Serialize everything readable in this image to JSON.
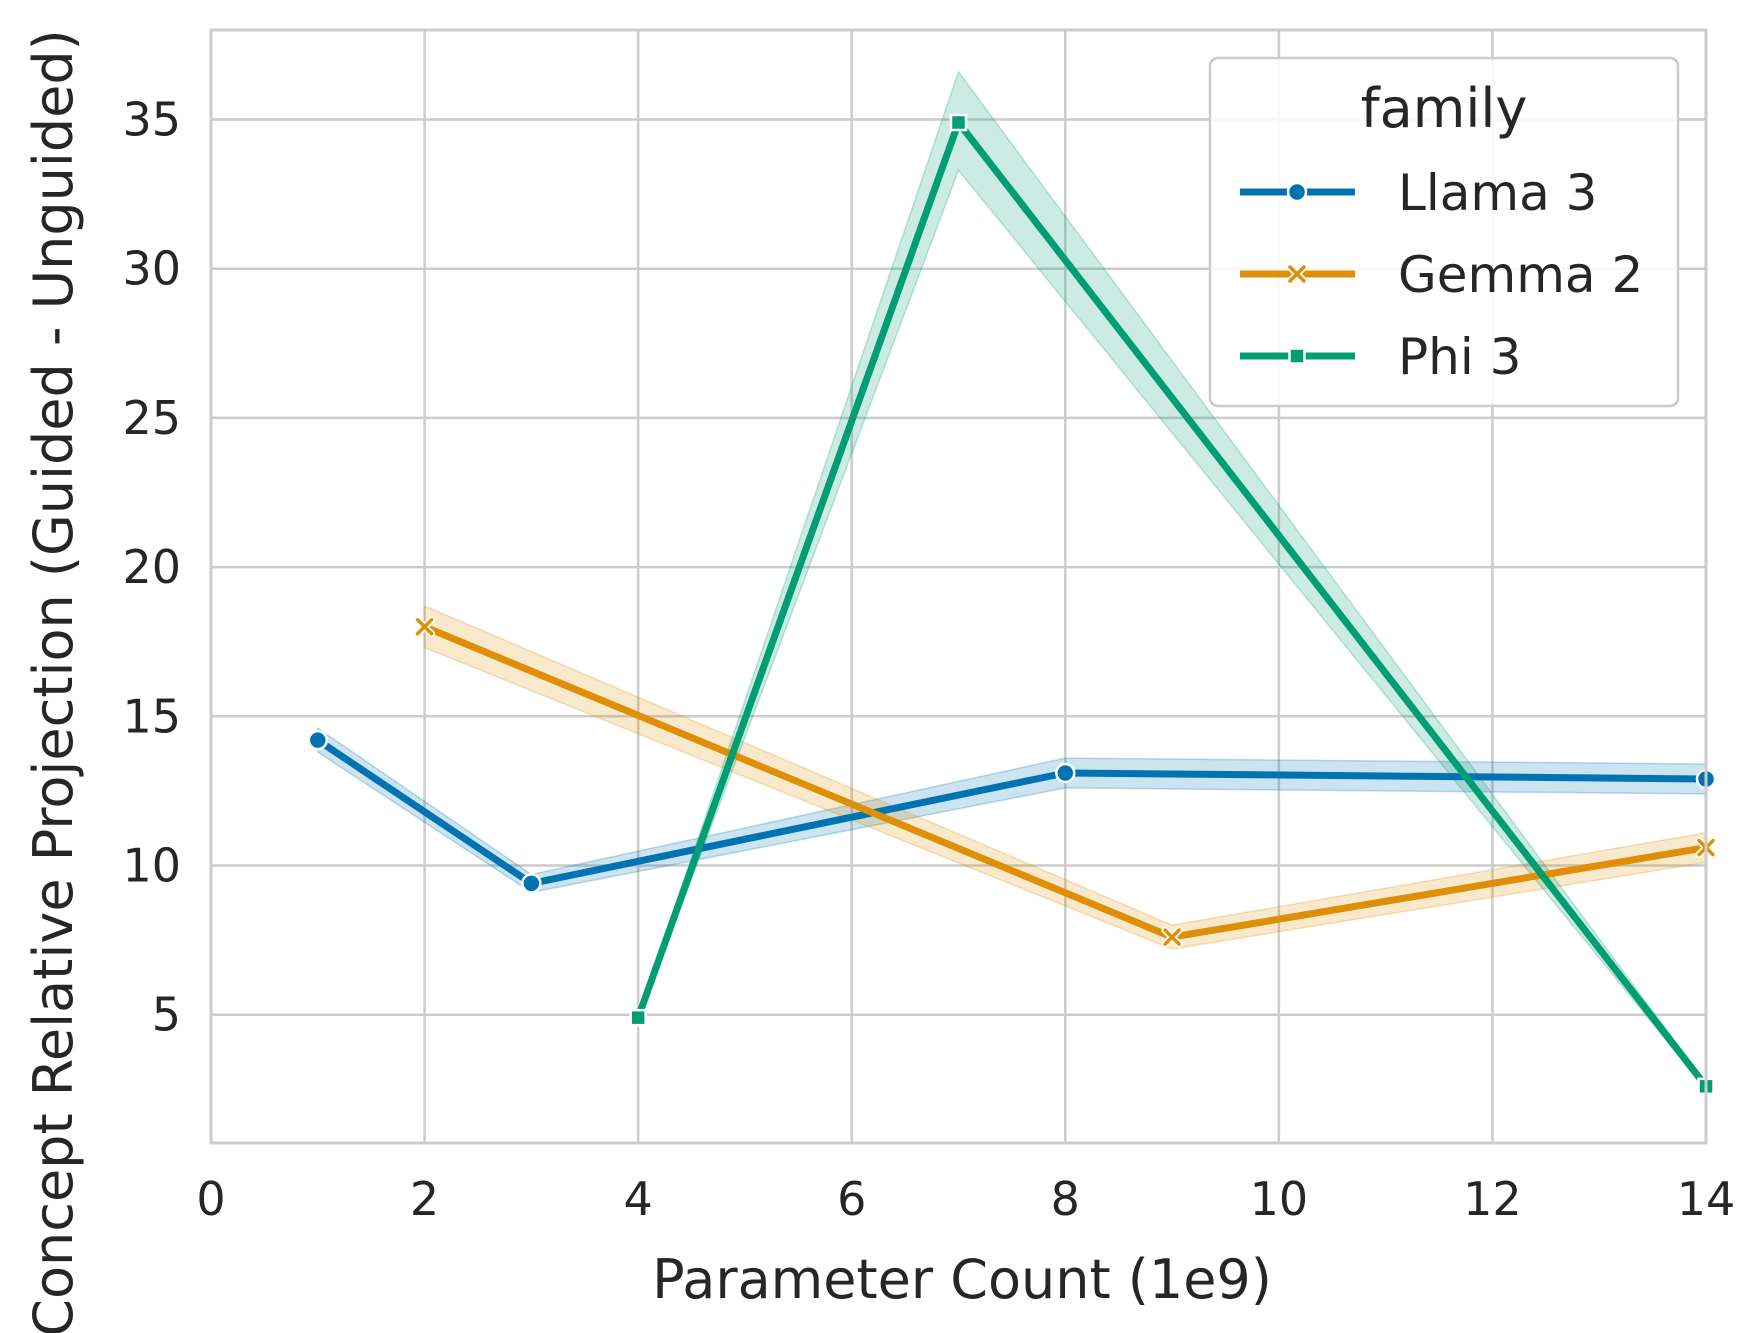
{
  "chart_data": {
    "type": "line",
    "xlabel": "Parameter Count (1e9)",
    "ylabel": "Concept Relative Projection (Guided - Unguided)",
    "xlim": [
      0,
      14
    ],
    "ylim": [
      0.7,
      38.0
    ],
    "xticks": [
      0,
      2,
      4,
      6,
      8,
      10,
      12,
      14
    ],
    "yticks": [
      5,
      10,
      15,
      20,
      25,
      30,
      35
    ],
    "grid": true,
    "legend": {
      "title": "family",
      "placement": "top-right"
    },
    "series": [
      {
        "name": "Llama 3",
        "color": "#0173b2",
        "marker": "circle",
        "x": [
          1,
          3,
          8,
          14
        ],
        "y": [
          14.2,
          9.4,
          13.1,
          12.9
        ],
        "ci_low": [
          13.8,
          9.1,
          12.6,
          12.4
        ],
        "ci_high": [
          14.6,
          9.7,
          13.6,
          13.4
        ]
      },
      {
        "name": "Gemma 2",
        "color": "#de8f05",
        "marker": "x",
        "x": [
          2,
          9,
          14
        ],
        "y": [
          18.0,
          7.6,
          10.6
        ],
        "ci_low": [
          17.3,
          7.2,
          10.1
        ],
        "ci_high": [
          18.7,
          8.0,
          11.1
        ]
      },
      {
        "name": "Phi 3",
        "color": "#029e73",
        "marker": "square",
        "x": [
          4,
          7,
          14
        ],
        "y": [
          4.9,
          34.9,
          2.6
        ],
        "ci_low": [
          4.8,
          33.3,
          2.5
        ],
        "ci_high": [
          5.0,
          36.6,
          2.7
        ]
      }
    ]
  }
}
